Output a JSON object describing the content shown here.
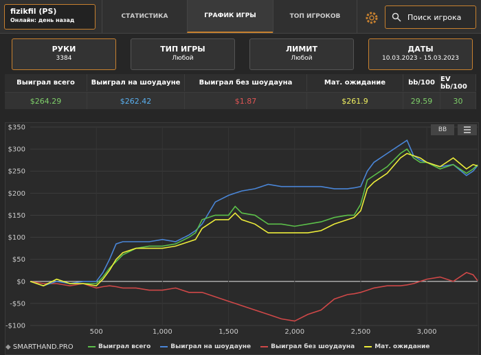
{
  "header": {
    "user_name": "fizikfil (PS)",
    "user_status": "Онлайн: день назад",
    "tabs": [
      "СТАТИСТИКА",
      "ГРАФИК ИГРЫ",
      "ТОП ИГРОКОВ"
    ],
    "search_placeholder": "Поиск игрока"
  },
  "filters": [
    {
      "title": "РУКИ",
      "value": "3384"
    },
    {
      "title": "ТИП ИГРЫ",
      "value": "Любой"
    },
    {
      "title": "ЛИМИТ",
      "value": "Любой"
    },
    {
      "title": "ДАТЫ",
      "value": "10.03.2023 - 15.03.2023"
    }
  ],
  "stats": {
    "headers": [
      "Выиграл всего",
      "Выиграл на шоудауне",
      "Выиграл без шоудауна",
      "Мат. ожидание",
      "bb/100",
      "EV bb/100"
    ],
    "values": [
      "$264.29",
      "$262.42",
      "$1.87",
      "$261.9",
      "29.59",
      "30"
    ]
  },
  "chart_controls": {
    "unit_button": "BB"
  },
  "logo": "SMARTHAND.PRO",
  "chart_data": {
    "type": "line",
    "x": [
      0,
      100,
      200,
      300,
      400,
      500,
      550,
      600,
      650,
      700,
      800,
      900,
      1000,
      1100,
      1200,
      1250,
      1300,
      1400,
      1500,
      1550,
      1600,
      1700,
      1800,
      1900,
      2000,
      2100,
      2200,
      2300,
      2400,
      2450,
      2500,
      2550,
      2600,
      2700,
      2800,
      2850,
      2900,
      2950,
      3000,
      3100,
      3200,
      3300,
      3350,
      3384
    ],
    "series": [
      {
        "name": "Выиграл всего",
        "color": "#5cc04a",
        "values": [
          0,
          -10,
          5,
          -5,
          -5,
          -5,
          10,
          30,
          45,
          60,
          75,
          80,
          80,
          85,
          100,
          110,
          140,
          150,
          150,
          170,
          155,
          150,
          130,
          130,
          125,
          130,
          135,
          145,
          150,
          150,
          175,
          230,
          240,
          260,
          290,
          300,
          280,
          270,
          270,
          255,
          265,
          245,
          255,
          264.29
        ]
      },
      {
        "name": "Выиграл на шоудауне",
        "color": "#4a86d8",
        "values": [
          0,
          -10,
          0,
          -5,
          0,
          0,
          20,
          50,
          85,
          90,
          90,
          90,
          95,
          90,
          105,
          115,
          130,
          180,
          195,
          200,
          205,
          210,
          220,
          215,
          215,
          215,
          215,
          210,
          210,
          212,
          215,
          250,
          270,
          290,
          310,
          320,
          285,
          275,
          270,
          260,
          265,
          240,
          250,
          262.42
        ]
      },
      {
        "name": "Выиграл без шоудауна",
        "color": "#d04848",
        "values": [
          0,
          -5,
          -5,
          -10,
          -5,
          -15,
          -12,
          -10,
          -12,
          -15,
          -15,
          -20,
          -20,
          -15,
          -25,
          -25,
          -25,
          -35,
          -45,
          -50,
          -55,
          -65,
          -75,
          -85,
          -90,
          -75,
          -65,
          -40,
          -30,
          -28,
          -25,
          -20,
          -15,
          -10,
          -10,
          -8,
          -5,
          0,
          5,
          10,
          0,
          20,
          15,
          1.87
        ]
      },
      {
        "name": "Мат. ожидание",
        "color": "#eeee3a",
        "values": [
          0,
          -10,
          5,
          -5,
          -5,
          -10,
          5,
          25,
          50,
          65,
          75,
          75,
          75,
          80,
          90,
          95,
          120,
          140,
          140,
          155,
          140,
          130,
          110,
          110,
          110,
          110,
          115,
          130,
          140,
          145,
          160,
          210,
          225,
          245,
          280,
          290,
          285,
          280,
          270,
          260,
          280,
          255,
          265,
          261.9
        ]
      }
    ],
    "xlim": [
      0,
      3384
    ],
    "ylim": [
      -100,
      350
    ],
    "xticks": [
      500,
      {
        "value": 1000,
        "label": "1,000"
      },
      {
        "value": 1500,
        "label": "1,500"
      },
      {
        "value": 2000,
        "label": "2,000"
      },
      {
        "value": 2500,
        "label": "2,500"
      },
      {
        "value": 3000,
        "label": "3,000"
      }
    ],
    "yticks": [
      {
        "value": 350,
        "label": "$350"
      },
      {
        "value": 300,
        "label": "$300"
      },
      {
        "value": 250,
        "label": "$250"
      },
      {
        "value": 200,
        "label": "$200"
      },
      {
        "value": 150,
        "label": "$150"
      },
      {
        "value": 100,
        "label": "$100"
      },
      {
        "value": 50,
        "label": "$50"
      },
      {
        "value": 0,
        "label": "$0"
      },
      {
        "value": -50,
        "label": "-$50"
      },
      {
        "value": -100,
        "label": "-$100"
      }
    ],
    "grid": true
  }
}
